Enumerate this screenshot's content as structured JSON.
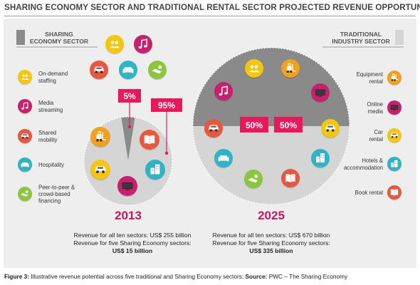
{
  "title": "SHARING ECONOMY SECTOR AND TRADITIONAL RENTAL SECTOR PROJECTED REVENUE OPPORTUNITY",
  "sharing_legend": {
    "heading_lines": [
      "SHARING",
      "ECONOMY SECTOR"
    ],
    "items": [
      {
        "lines": [
          "On-demand",
          "staffing"
        ],
        "icon": "staffing-icon",
        "color": "#f6c60d"
      },
      {
        "lines": [
          "Media",
          "streaming"
        ],
        "icon": "music-note-icon",
        "color": "#c7206c"
      },
      {
        "lines": [
          "Shared",
          "mobility"
        ],
        "icon": "car-icon",
        "color": "#e9573c"
      },
      {
        "lines": [
          "Hospitality"
        ],
        "icon": "sofa-icon",
        "color": "#2fb4c6"
      },
      {
        "lines": [
          "Peer-to-peer &",
          "crowd-based",
          "financing"
        ],
        "icon": "handshake-coin-icon",
        "color": "#8cc63f"
      }
    ]
  },
  "traditional_legend": {
    "heading_lines": [
      "TRADITIONAL",
      "INDUSTRY SECTOR"
    ],
    "items": [
      {
        "lines": [
          "Equipment",
          "rental"
        ],
        "icon": "forklift-icon",
        "color": "#f3a11b"
      },
      {
        "lines": [
          "Online",
          "media"
        ],
        "icon": "tv-screen-icon",
        "color": "#c7206c"
      },
      {
        "lines": [
          "Car",
          "rental"
        ],
        "icon": "car-icon",
        "color": "#f6c60d"
      },
      {
        "lines": [
          "Hotels &",
          "accommodation"
        ],
        "icon": "buildings-icon",
        "color": "#2fb4c6"
      },
      {
        "lines": [
          "Book rental"
        ],
        "icon": "book-icon",
        "color": "#e9573c"
      }
    ]
  },
  "chart_data": [
    {
      "type": "pie",
      "year": "2013",
      "categories": [
        "Sharing Economy",
        "Traditional"
      ],
      "values": [
        5,
        95
      ],
      "labels": [
        "5%",
        "95%"
      ],
      "colors": {
        "sharing": "#8a8a8a",
        "traditional": "#d5d5d5"
      },
      "revenue_lines": [
        "Revenue for all ten sectors: US$ 255 billion",
        "Revenue for five Sharing Economy sectors:",
        "US$ 15 billion"
      ]
    },
    {
      "type": "pie",
      "year": "2025",
      "categories": [
        "Sharing Economy",
        "Traditional"
      ],
      "values": [
        50,
        50
      ],
      "labels": [
        "50%",
        "50%"
      ],
      "colors": {
        "sharing": "#8a8a8a",
        "traditional": "#d5d5d5"
      },
      "revenue_lines": [
        "Revenue for all ten sectors: US$ 670 billion",
        "Revenue for five Sharing Economy sectors:",
        "US$ 335 billion"
      ]
    }
  ],
  "caption": {
    "label": "Figure 3:",
    "text": " Illustrative revenue potential across five traditional and Sharing Economy sectors; ",
    "source_label": "Source:",
    "source_text": " PWC – The Sharing Economy"
  },
  "accent_color": "#e8185c"
}
